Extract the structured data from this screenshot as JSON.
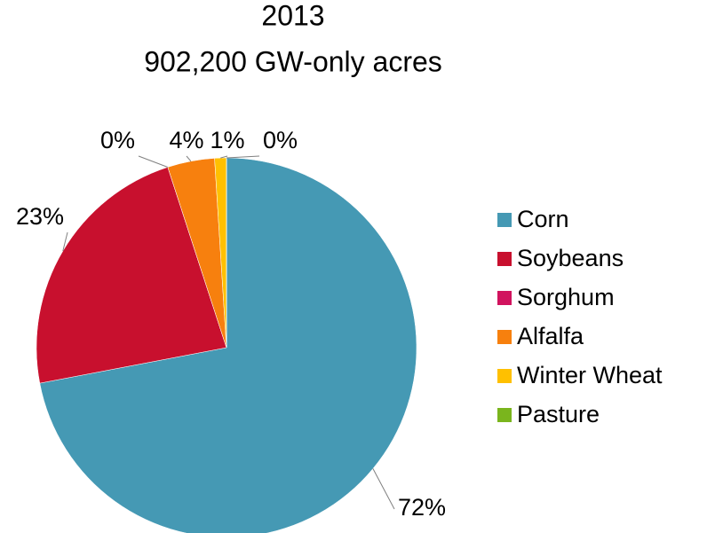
{
  "chart_data": {
    "type": "pie",
    "title": "2013",
    "subtitle": "902,200 GW-only acres",
    "categories": [
      "Corn",
      "Soybeans",
      "Sorghum",
      "Alfalfa",
      "Winter Wheat",
      "Pasture"
    ],
    "values": [
      72,
      23,
      0,
      4,
      1,
      0
    ],
    "value_labels": [
      "72%",
      "23%",
      "0%",
      "4%",
      "1%",
      "0%"
    ],
    "colors": [
      "#4599b4",
      "#c8102e",
      "#d1135e",
      "#f7800e",
      "#ffc000",
      "#7ab51d"
    ],
    "legend": "right"
  }
}
